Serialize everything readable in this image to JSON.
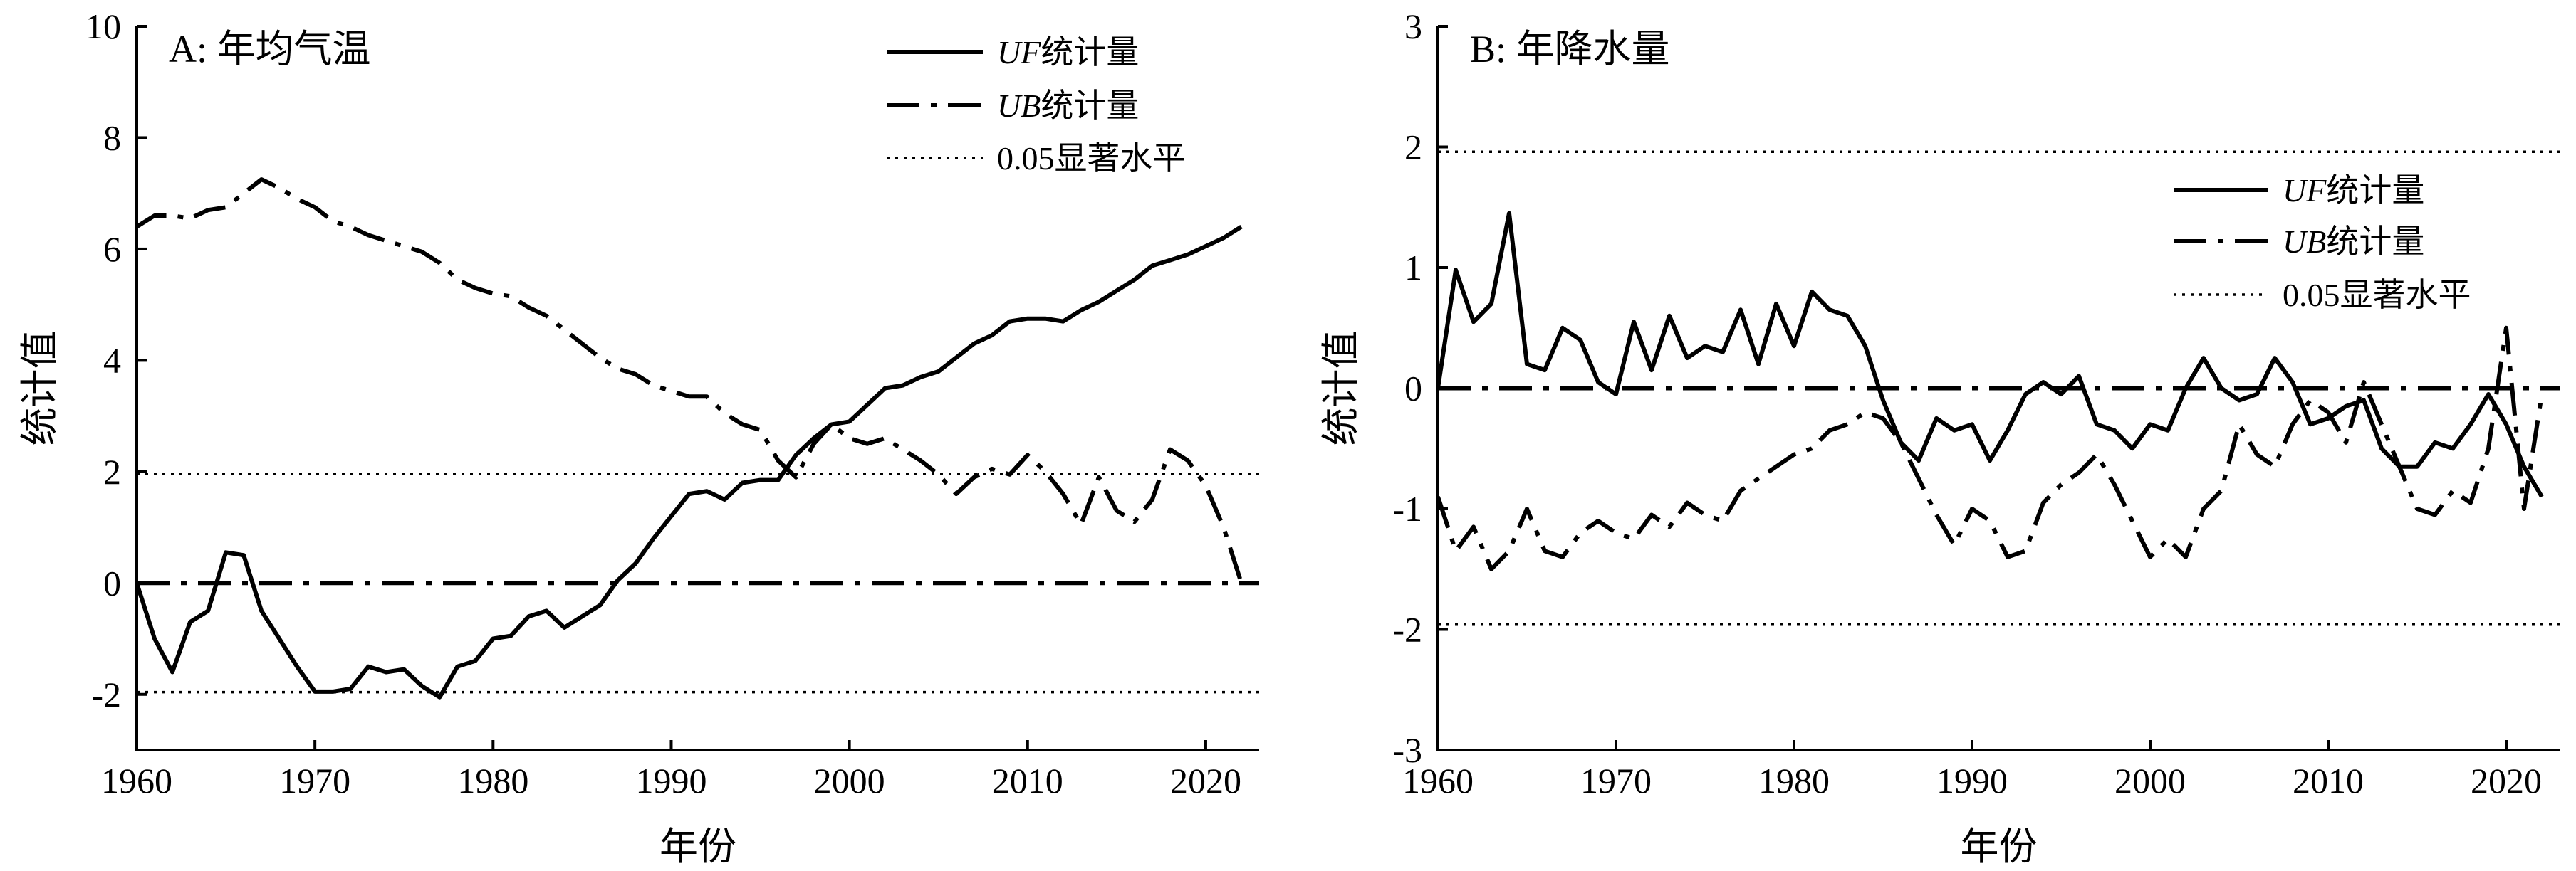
{
  "chart_data": [
    {
      "type": "line",
      "title": "A: 年均气温",
      "xlabel": "年份",
      "ylabel": "统计值",
      "xlim": [
        1960,
        2023
      ],
      "ylim": [
        -3,
        10
      ],
      "xticks": [
        1960,
        1970,
        1980,
        1990,
        2000,
        2010,
        2020
      ],
      "yticks": [
        -2,
        0,
        2,
        4,
        6,
        8,
        10
      ],
      "legend": {
        "placement": "top-right",
        "labels": [
          "UF统计量",
          "UB统计量",
          "0.05显著水平"
        ]
      },
      "reference_lines": [
        1.96,
        0,
        -1.96
      ],
      "x": [
        1960,
        1961,
        1962,
        1963,
        1964,
        1965,
        1966,
        1967,
        1968,
        1969,
        1970,
        1971,
        1972,
        1973,
        1974,
        1975,
        1976,
        1977,
        1978,
        1979,
        1980,
        1981,
        1982,
        1983,
        1984,
        1985,
        1986,
        1987,
        1988,
        1989,
        1990,
        1991,
        1992,
        1993,
        1994,
        1995,
        1996,
        1997,
        1998,
        1999,
        2000,
        2001,
        2002,
        2003,
        2004,
        2005,
        2006,
        2007,
        2008,
        2009,
        2010,
        2011,
        2012,
        2013,
        2014,
        2015,
        2016,
        2017,
        2018,
        2019,
        2020,
        2021,
        2022
      ],
      "series": [
        {
          "name": "UF统计量",
          "values": [
            0,
            -1.0,
            -1.6,
            -0.7,
            -0.5,
            0.55,
            0.5,
            -0.5,
            -1.0,
            -1.5,
            -1.95,
            -1.95,
            -1.9,
            -1.5,
            -1.6,
            -1.55,
            -1.85,
            -2.05,
            -1.5,
            -1.4,
            -1.0,
            -0.95,
            -0.6,
            -0.5,
            -0.8,
            -0.6,
            -0.4,
            0.05,
            0.35,
            0.8,
            1.2,
            1.6,
            1.65,
            1.5,
            1.8,
            1.85,
            1.85,
            2.3,
            2.6,
            2.85,
            2.9,
            3.2,
            3.5,
            3.55,
            3.7,
            3.8,
            4.05,
            4.3,
            4.45,
            4.7,
            4.75,
            4.75,
            4.7,
            4.9,
            5.05,
            5.25,
            5.45,
            5.7,
            5.8,
            5.9,
            6.05,
            6.2,
            6.4
          ]
        },
        {
          "name": "UB统计量",
          "values": [
            6.4,
            6.6,
            6.6,
            6.55,
            6.7,
            6.75,
            7.0,
            7.25,
            7.1,
            6.9,
            6.75,
            6.5,
            6.4,
            6.25,
            6.15,
            6.05,
            5.95,
            5.75,
            5.45,
            5.3,
            5.2,
            5.15,
            4.95,
            4.8,
            4.55,
            4.3,
            4.05,
            3.85,
            3.75,
            3.55,
            3.45,
            3.35,
            3.35,
            3.05,
            2.85,
            2.75,
            2.2,
            1.9,
            2.5,
            2.85,
            2.6,
            2.5,
            2.6,
            2.4,
            2.2,
            1.95,
            1.6,
            1.9,
            2.05,
            1.95,
            2.3,
            2.0,
            1.6,
            1.05,
            1.9,
            1.3,
            1.1,
            1.5,
            2.4,
            2.2,
            1.75,
            1.0,
            0.0
          ]
        }
      ]
    },
    {
      "type": "line",
      "title": "B: 年降水量",
      "xlabel": "年份",
      "ylabel": "统计值",
      "xlim": [
        1960,
        2023
      ],
      "ylim": [
        -3,
        3
      ],
      "xticks": [
        1960,
        1970,
        1980,
        1990,
        2000,
        2010,
        2020
      ],
      "yticks": [
        -3,
        -2,
        -1,
        0,
        1,
        2,
        3
      ],
      "legend": {
        "placement": "top-right",
        "labels": [
          "UF统计量",
          "UB统计量",
          "0.05显著水平"
        ]
      },
      "reference_lines": [
        1.96,
        0,
        -1.96
      ],
      "x": [
        1960,
        1961,
        1962,
        1963,
        1964,
        1965,
        1966,
        1967,
        1968,
        1969,
        1970,
        1971,
        1972,
        1973,
        1974,
        1975,
        1976,
        1977,
        1978,
        1979,
        1980,
        1981,
        1982,
        1983,
        1984,
        1985,
        1986,
        1987,
        1988,
        1989,
        1990,
        1991,
        1992,
        1993,
        1994,
        1995,
        1996,
        1997,
        1998,
        1999,
        2000,
        2001,
        2002,
        2003,
        2004,
        2005,
        2006,
        2007,
        2008,
        2009,
        2010,
        2011,
        2012,
        2013,
        2014,
        2015,
        2016,
        2017,
        2018,
        2019,
        2020,
        2021,
        2022
      ],
      "series": [
        {
          "name": "UF统计量",
          "values": [
            0,
            0.98,
            0.55,
            0.7,
            1.45,
            0.2,
            0.15,
            0.5,
            0.4,
            0.05,
            -0.05,
            0.55,
            0.15,
            0.6,
            0.25,
            0.35,
            0.3,
            0.65,
            0.2,
            0.7,
            0.35,
            0.8,
            0.65,
            0.6,
            0.35,
            -0.1,
            -0.45,
            -0.6,
            -0.25,
            -0.35,
            -0.3,
            -0.6,
            -0.35,
            -0.05,
            0.05,
            -0.05,
            0.1,
            -0.3,
            -0.35,
            -0.5,
            -0.3,
            -0.35,
            0.0,
            0.25,
            0.0,
            -0.1,
            -0.05,
            0.25,
            0.05,
            -0.3,
            -0.25,
            -0.15,
            -0.1,
            -0.5,
            -0.65,
            -0.65,
            -0.45,
            -0.5,
            -0.3,
            -0.05,
            -0.3,
            -0.65,
            -0.9
          ]
        },
        {
          "name": "UB统计量",
          "values": [
            -0.9,
            -1.35,
            -1.15,
            -1.5,
            -1.35,
            -1.0,
            -1.35,
            -1.4,
            -1.2,
            -1.1,
            -1.2,
            -1.25,
            -1.05,
            -1.15,
            -0.95,
            -1.05,
            -1.1,
            -0.85,
            -0.75,
            -0.65,
            -0.55,
            -0.5,
            -0.35,
            -0.3,
            -0.2,
            -0.25,
            -0.45,
            -0.75,
            -1.05,
            -1.3,
            -1.0,
            -1.1,
            -1.4,
            -1.35,
            -0.95,
            -0.8,
            -0.7,
            -0.55,
            -0.8,
            -1.1,
            -1.4,
            -1.25,
            -1.4,
            -1.0,
            -0.85,
            -0.3,
            -0.55,
            -0.65,
            -0.3,
            -0.1,
            -0.2,
            -0.45,
            0.05,
            -0.3,
            -0.65,
            -1.0,
            -1.05,
            -0.85,
            -0.95,
            -0.5,
            0.5,
            -1.0,
            -0.05
          ]
        }
      ]
    }
  ]
}
